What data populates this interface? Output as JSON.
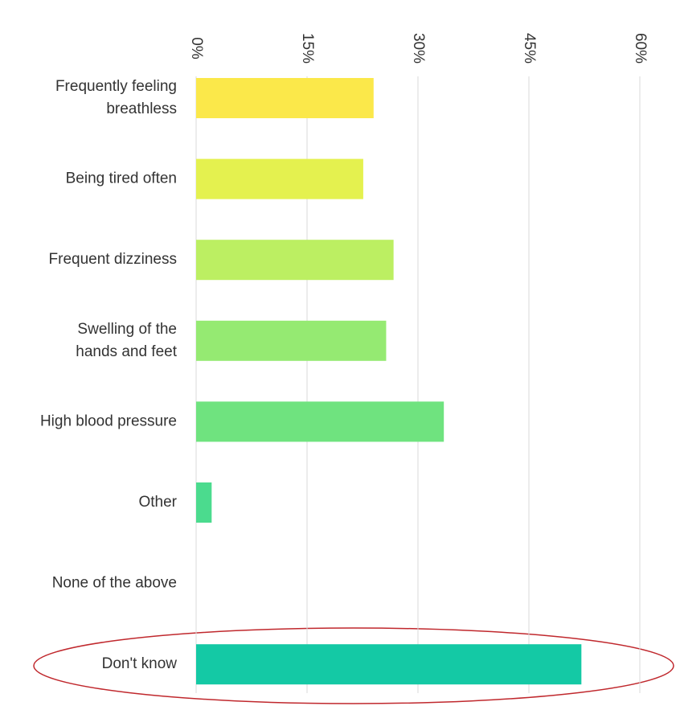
{
  "chart_data": {
    "type": "bar",
    "orientation": "horizontal",
    "categories": [
      [
        "Frequently feeling",
        "breathless"
      ],
      [
        "Being tired often"
      ],
      [
        "Frequent dizziness"
      ],
      [
        "Swelling of the",
        "hands and feet"
      ],
      [
        "High blood pressure"
      ],
      [
        "Other"
      ],
      [
        "None of the above"
      ],
      [
        "Don't know"
      ]
    ],
    "values": [
      24,
      22.6,
      26.7,
      25.7,
      33.5,
      2.1,
      0,
      52.1
    ],
    "colors": [
      "#fbe84a",
      "#e4f14f",
      "#bcef62",
      "#95ea72",
      "#6fe37f",
      "#4bdb8e",
      "#2fd49a",
      "#14c9a5"
    ],
    "xlim": [
      0,
      60
    ],
    "xticks": [
      {
        "value": 0,
        "label": "0%"
      },
      {
        "value": 15,
        "label": "15%"
      },
      {
        "value": 30,
        "label": "30%"
      },
      {
        "value": 45,
        "label": "45%"
      },
      {
        "value": 60,
        "label": "60%"
      }
    ],
    "grid": true
  }
}
